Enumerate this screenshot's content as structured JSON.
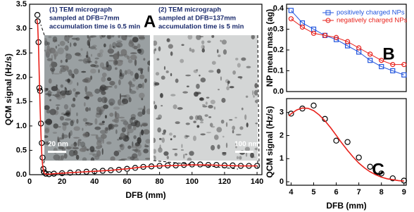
{
  "chart_data": [
    {
      "type": "scatter",
      "panel_label": "A",
      "x_label": "DFB (mm)",
      "y_label": "QCM signal (Hz/s)",
      "xlim": [
        0,
        143
      ],
      "xticks": [
        0,
        20,
        40,
        60,
        80,
        100,
        120,
        140
      ],
      "ylim": [
        0,
        3.5
      ],
      "yticks": [
        {
          "value": 0,
          "label": "0.0"
        },
        0.5,
        {
          "value": 1,
          "label": "1.0"
        },
        1.5,
        {
          "value": 2,
          "label": "2.0"
        },
        2.5,
        {
          "value": 3,
          "label": "3.0"
        },
        3.5
      ],
      "annotations": [
        "(1) TEM micrograph",
        "sampled at DFB=7mm",
        "accumulation time is 0.5 min",
        "(2) TEM micrograph",
        "sampled at DFB=137mm",
        "accumulation time is 5 min"
      ],
      "scale_bars": [
        "20 nm",
        "100 nm"
      ],
      "series": [
        {
          "color": "#000000",
          "marker": "circle",
          "line": false,
          "x": [
            4.8,
            5,
            5.5,
            6,
            6.5,
            7,
            7.5,
            8,
            8.5,
            9,
            10,
            12,
            15,
            20,
            25,
            30,
            35,
            40,
            45,
            50,
            55,
            60,
            65,
            70,
            75,
            80,
            85,
            90,
            95,
            100,
            105,
            110,
            115,
            120,
            125,
            130,
            135,
            140
          ],
          "values": [
            3.28,
            3.15,
            2.72,
            1.78,
            1.72,
            1.05,
            0.65,
            0.35,
            0.12,
            0.05,
            0.02,
            0.01,
            0.02,
            0.03,
            0.04,
            0.05,
            0.06,
            0.07,
            0.08,
            0.09,
            0.1,
            0.12,
            0.14,
            0.16,
            0.17,
            0.18,
            0.19,
            0.19,
            0.2,
            0.21,
            0.21,
            0.2,
            0.2,
            0.19,
            0.19,
            0.18,
            0.18,
            0.18
          ]
        },
        {
          "color": "#e8201a",
          "marker": "none",
          "line": true,
          "x": [
            4.5,
            5,
            5.5,
            6,
            6.5,
            7,
            7.5,
            8,
            8.5,
            9,
            10,
            12,
            15,
            20,
            30,
            40,
            50,
            60,
            70,
            80,
            90,
            100,
            110,
            120,
            130,
            140
          ],
          "values": [
            3.19,
            3.08,
            2.64,
            2.01,
            1.36,
            0.81,
            0.43,
            0.2,
            0.09,
            0.03,
            0.01,
            0.01,
            0.02,
            0.03,
            0.05,
            0.07,
            0.09,
            0.12,
            0.16,
            0.18,
            0.19,
            0.2,
            0.2,
            0.19,
            0.18,
            0.18
          ]
        }
      ]
    },
    {
      "type": "line",
      "panel_label": "B",
      "y_label": "NP mean mass (ag)",
      "xlim": [
        3.8,
        9.1
      ],
      "ylim": [
        0,
        0.42
      ],
      "yticks": [
        {
          "value": 0,
          "label": "0.0"
        },
        0.1,
        0.2,
        0.3,
        0.4
      ],
      "legend": "upper right",
      "series": [
        {
          "name": "positively charged  NPs",
          "color": "#2255dd",
          "marker": "square",
          "line": true,
          "x": [
            4,
            4.5,
            5,
            5.5,
            6,
            6.5,
            7,
            7.5,
            8,
            8.5,
            9
          ],
          "values": [
            0.39,
            0.33,
            0.3,
            0.27,
            0.25,
            0.22,
            0.19,
            0.15,
            0.12,
            0.1,
            0.08
          ]
        },
        {
          "name": "negatively charged  NPs",
          "color": "#e8201a",
          "marker": "circle",
          "line": true,
          "x": [
            4,
            4.5,
            5,
            5.5,
            6,
            6.5,
            7,
            7.5,
            8,
            8.5,
            9
          ],
          "values": [
            0.35,
            0.31,
            0.28,
            0.27,
            0.26,
            0.24,
            0.21,
            0.18,
            0.15,
            0.13,
            0.13
          ]
        }
      ]
    },
    {
      "type": "scatter",
      "panel_label": "C",
      "x_label": "DFB (mm)",
      "y_label": "QCM signal (Hz/s)",
      "xlim": [
        3.8,
        9.1
      ],
      "xticks": [
        4,
        5,
        6,
        7,
        8,
        9
      ],
      "ylim": [
        -0.15,
        3.6
      ],
      "yticks": [
        0,
        1,
        2,
        3
      ],
      "series": [
        {
          "color": "#000000",
          "marker": "circle",
          "line": false,
          "x": [
            4,
            4.5,
            5,
            5.5,
            6,
            6.5,
            7,
            7.5,
            8,
            8.5,
            9
          ],
          "values": [
            2.95,
            3.17,
            3.3,
            2.72,
            1.78,
            1.72,
            1.05,
            0.65,
            0.36,
            0.15,
            0.05
          ]
        },
        {
          "color": "#e8201a",
          "marker": "none",
          "line": true,
          "x": [
            3.9,
            4,
            4.25,
            4.5,
            4.75,
            5,
            5.25,
            5.5,
            5.75,
            6,
            6.25,
            6.5,
            6.75,
            7,
            7.25,
            7.5,
            7.75,
            8,
            8.25,
            8.5,
            8.75,
            9
          ],
          "values": [
            2.85,
            2.94,
            3.11,
            3.19,
            3.18,
            3.08,
            2.89,
            2.64,
            2.34,
            2.01,
            1.67,
            1.36,
            1.07,
            0.81,
            0.6,
            0.43,
            0.3,
            0.2,
            0.13,
            0.09,
            0.05,
            0.03
          ]
        }
      ]
    }
  ]
}
